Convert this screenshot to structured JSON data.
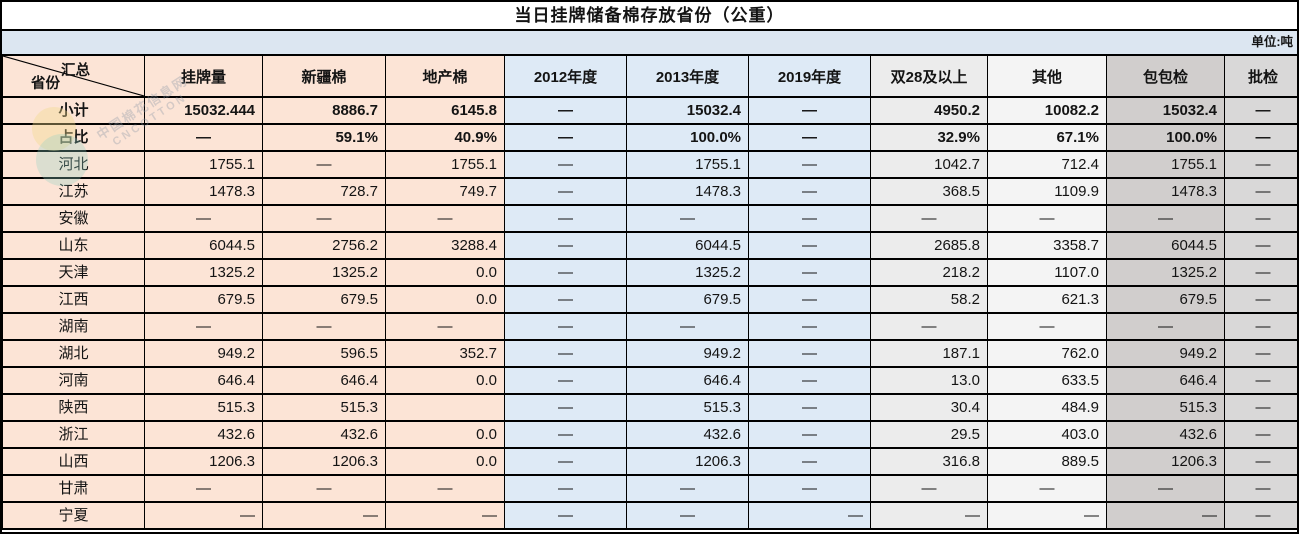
{
  "title": "当日挂牌储备棉存放省份（公重）",
  "unit_label": "单位:吨",
  "corner": {
    "top_label": "汇总",
    "bottom_label": "省份"
  },
  "columns": [
    "挂牌量",
    "新疆棉",
    "地产棉",
    "2012年度",
    "2013年度",
    "2019年度",
    "双28及以上",
    "其他",
    "包包检",
    "批检"
  ],
  "rows": [
    {
      "name": "小计",
      "bold": true,
      "cells": [
        "15032.444",
        "8886.7",
        "6145.8",
        "—",
        "15032.4",
        "—",
        "4950.2",
        "10082.2",
        "15032.4",
        "—"
      ]
    },
    {
      "name": "占比",
      "bold": true,
      "cells": [
        "—",
        "59.1%",
        "40.9%",
        "—",
        "100.0%",
        "—",
        "32.9%",
        "67.1%",
        "100.0%",
        "—"
      ]
    },
    {
      "name": "河北",
      "bold": false,
      "cells": [
        "1755.1",
        "—",
        "1755.1",
        "—",
        "1755.1",
        "—",
        "1042.7",
        "712.4",
        "1755.1",
        "—"
      ]
    },
    {
      "name": "江苏",
      "bold": false,
      "cells": [
        "1478.3",
        "728.7",
        "749.7",
        "—",
        "1478.3",
        "—",
        "368.5",
        "1109.9",
        "1478.3",
        "—"
      ]
    },
    {
      "name": "安徽",
      "bold": false,
      "cells": [
        "—",
        "—",
        "—",
        "—",
        "—",
        "—",
        "—",
        "—",
        "—",
        "—"
      ]
    },
    {
      "name": "山东",
      "bold": false,
      "cells": [
        "6044.5",
        "2756.2",
        "3288.4",
        "—",
        "6044.5",
        "—",
        "2685.8",
        "3358.7",
        "6044.5",
        "—"
      ]
    },
    {
      "name": "天津",
      "bold": false,
      "cells": [
        "1325.2",
        "1325.2",
        "0.0",
        "—",
        "1325.2",
        "—",
        "218.2",
        "1107.0",
        "1325.2",
        "—"
      ]
    },
    {
      "name": "江西",
      "bold": false,
      "cells": [
        "679.5",
        "679.5",
        "0.0",
        "—",
        "679.5",
        "—",
        "58.2",
        "621.3",
        "679.5",
        "—"
      ]
    },
    {
      "name": "湖南",
      "bold": false,
      "cells": [
        "—",
        "—",
        "—",
        "—",
        "—",
        "—",
        "—",
        "—",
        "—",
        "—"
      ]
    },
    {
      "name": "湖北",
      "bold": false,
      "cells": [
        "949.2",
        "596.5",
        "352.7",
        "—",
        "949.2",
        "—",
        "187.1",
        "762.0",
        "949.2",
        "—"
      ]
    },
    {
      "name": "河南",
      "bold": false,
      "cells": [
        "646.4",
        "646.4",
        "0.0",
        "—",
        "646.4",
        "—",
        "13.0",
        "633.5",
        "646.4",
        "—"
      ]
    },
    {
      "name": "陕西",
      "bold": false,
      "cells": [
        "515.3",
        "515.3",
        "",
        "—",
        "515.3",
        "—",
        "30.4",
        "484.9",
        "515.3",
        "—"
      ]
    },
    {
      "name": "浙江",
      "bold": false,
      "cells": [
        "432.6",
        "432.6",
        "0.0",
        "—",
        "432.6",
        "—",
        "29.5",
        "403.0",
        "432.6",
        "—"
      ]
    },
    {
      "name": "山西",
      "bold": false,
      "cells": [
        "1206.3",
        "1206.3",
        "0.0",
        "—",
        "1206.3",
        "—",
        "316.8",
        "889.5",
        "1206.3",
        "—"
      ]
    },
    {
      "name": "甘肃",
      "bold": false,
      "cells": [
        "—",
        "—",
        "—",
        "—",
        "—",
        "—",
        "—",
        "—",
        "—",
        "—"
      ]
    },
    {
      "name": "宁夏",
      "bold": false,
      "cells": [
        "—",
        "—",
        "—",
        "—",
        "—",
        "—",
        "—",
        "—",
        "—",
        "—"
      ],
      "aligns": [
        "r",
        "r",
        "r",
        "c",
        "c",
        "r",
        "r",
        "r",
        "r",
        "c"
      ]
    }
  ],
  "colors": {
    "peach": "#fce4d6",
    "blue": "#deeaf6",
    "gray_double28": "#ececec",
    "gray_other": "#f4f4f4",
    "gray_baojian": "#d1cecd",
    "gray_pijian": "#d9d8d8",
    "unit_band": "#dce6f1",
    "border": "#000000"
  },
  "watermark": {
    "line1": "中国棉花信息网",
    "line2": "CNCOTTON"
  }
}
